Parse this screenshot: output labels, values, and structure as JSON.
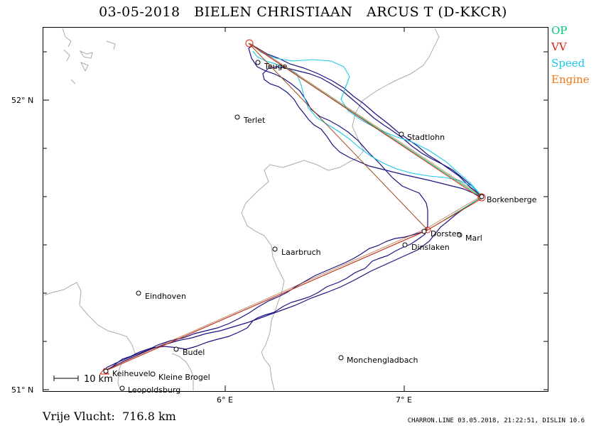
{
  "title": {
    "date": "03-05-2018",
    "pilot": "BIELEN CHRISTIAAN",
    "glider": "ARCUS T (D-KKCR)"
  },
  "legend": [
    {
      "label": "OP",
      "color": "#00c878"
    },
    {
      "label": "VV",
      "color": "#e02010"
    },
    {
      "label": "Speed",
      "color": "#18c8e8"
    },
    {
      "label": "Engine",
      "color": "#f07818"
    }
  ],
  "axes": {
    "lat_labels": [
      "52° N",
      "51° N"
    ],
    "lon_labels": [
      "6° E",
      "7° E"
    ]
  },
  "places": {
    "teuge": "Teuge",
    "terlet": "Terlet",
    "stadtlohn": "Stadtlohn",
    "borkenberge": "Borkenberge",
    "dorsten": "Dorsten",
    "marl": "Marl",
    "dinslaken": "Dinslaken",
    "laarbruch": "Laarbruch",
    "eindhoven": "Eindhoven",
    "budel": "Budel",
    "keiheuvel": "Keiheuvel",
    "kleine_brogel": "Kleine Brogel",
    "leopoldsburg": "Leopoldsburg",
    "monchengladbach": "Monchengladbach"
  },
  "scale_label": "10 km",
  "distance_text": "Vrije Vlucht:  716.8 km",
  "footer": "CHARRON.LINE 03.05.2018, 21:22:51, DISLIN 10.6",
  "colors": {
    "track": "#1a1280",
    "border": "#aaaaaa",
    "frame": "#000000"
  }
}
